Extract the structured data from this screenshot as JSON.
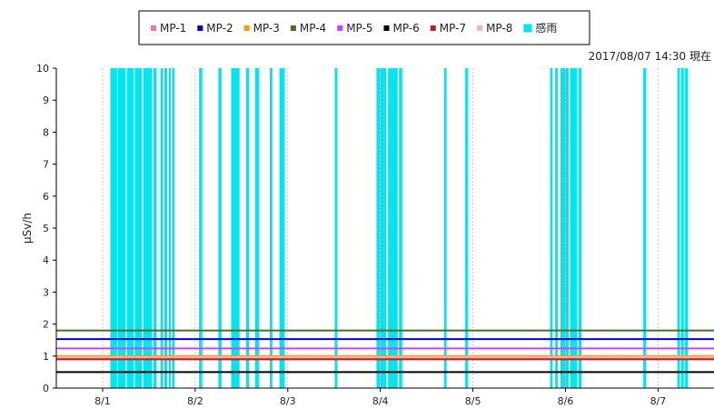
{
  "chart_data": {
    "type": "line",
    "timestamp": "2017/08/07 14:30 現在",
    "ylabel": "μSv/h",
    "ylim": [
      0,
      10
    ],
    "yticks": [
      0,
      1,
      2,
      3,
      4,
      5,
      6,
      7,
      8,
      9,
      10
    ],
    "xlim": [
      "2017-07-31 12:00",
      "2017-08-07 14:30"
    ],
    "xtick_labels": [
      "8/1",
      "8/2",
      "8/3",
      "8/4",
      "8/5",
      "8/6",
      "8/7"
    ],
    "grid": "vertical dashed",
    "legend_position": "top",
    "series": [
      {
        "name": "MP-1",
        "color": "#ff6fa8",
        "value": 0.95
      },
      {
        "name": "MP-2",
        "color": "#0000cc",
        "value": 1.53
      },
      {
        "name": "MP-3",
        "color": "#ff9900",
        "value": 1.0
      },
      {
        "name": "MP-4",
        "color": "#4b6b2a",
        "value": 1.8
      },
      {
        "name": "MP-5",
        "color": "#cc44ee",
        "value": 1.24
      },
      {
        "name": "MP-6",
        "color": "#000000",
        "value": 0.5
      },
      {
        "name": "MP-7",
        "color": "#c02020",
        "value": 0.9
      },
      {
        "name": "MP-8",
        "color": "#f2b8a2",
        "value": 0.97
      }
    ],
    "rain": {
      "name": "感雨",
      "color": "#00e5ee",
      "periods": [
        [
          "2017-08-01 02:00",
          "2017-08-01 03:45"
        ],
        [
          "2017-08-01 04:00",
          "2017-08-01 06:00"
        ],
        [
          "2017-08-01 06:20",
          "2017-08-01 08:00"
        ],
        [
          "2017-08-01 08:20",
          "2017-08-01 10:10"
        ],
        [
          "2017-08-01 10:30",
          "2017-08-01 12:50"
        ],
        [
          "2017-08-01 13:10",
          "2017-08-01 14:00"
        ],
        [
          "2017-08-01 15:00",
          "2017-08-01 15:40"
        ],
        [
          "2017-08-01 16:00",
          "2017-08-01 16:45"
        ],
        [
          "2017-08-01 17:10",
          "2017-08-01 17:40"
        ],
        [
          "2017-08-01 18:00",
          "2017-08-01 18:40"
        ],
        [
          "2017-08-02 01:00",
          "2017-08-02 01:50"
        ],
        [
          "2017-08-02 06:00",
          "2017-08-02 06:50"
        ],
        [
          "2017-08-02 09:20",
          "2017-08-02 11:30"
        ],
        [
          "2017-08-02 13:10",
          "2017-08-02 14:00"
        ],
        [
          "2017-08-02 15:30",
          "2017-08-02 16:30"
        ],
        [
          "2017-08-02 19:20",
          "2017-08-02 20:00"
        ],
        [
          "2017-08-02 21:50",
          "2017-08-02 23:10"
        ],
        [
          "2017-08-03 12:10",
          "2017-08-03 12:50"
        ],
        [
          "2017-08-03 23:00",
          "2017-08-04 01:30"
        ],
        [
          "2017-08-04 02:00",
          "2017-08-04 04:30"
        ],
        [
          "2017-08-04 04:50",
          "2017-08-04 05:40"
        ],
        [
          "2017-08-04 16:30",
          "2017-08-04 17:10"
        ],
        [
          "2017-08-04 22:00",
          "2017-08-04 22:40"
        ],
        [
          "2017-08-05 20:00",
          "2017-08-05 20:40"
        ],
        [
          "2017-08-05 21:20",
          "2017-08-05 22:00"
        ],
        [
          "2017-08-05 22:40",
          "2017-08-06 00:50"
        ],
        [
          "2017-08-06 01:10",
          "2017-08-06 03:00"
        ],
        [
          "2017-08-06 03:20",
          "2017-08-06 04:10"
        ],
        [
          "2017-08-06 20:10",
          "2017-08-06 20:50"
        ],
        [
          "2017-08-07 05:00",
          "2017-08-07 05:40"
        ],
        [
          "2017-08-07 06:00",
          "2017-08-07 06:40"
        ],
        [
          "2017-08-07 07:00",
          "2017-08-07 07:40"
        ]
      ]
    }
  }
}
